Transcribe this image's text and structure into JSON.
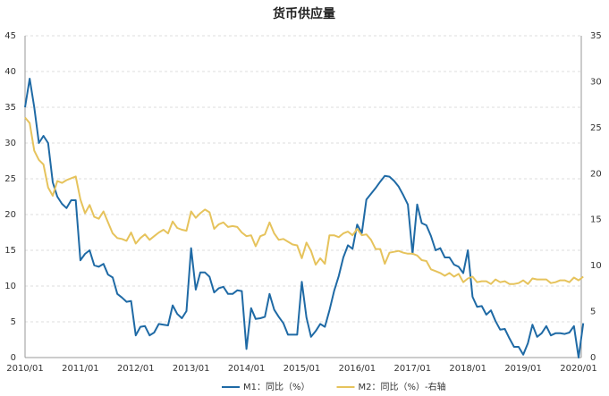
{
  "chart_data": {
    "type": "line",
    "title": "货币供应量",
    "categories": [
      "2010/01",
      null,
      null,
      null,
      null,
      null,
      null,
      null,
      null,
      null,
      null,
      null,
      "2011/01",
      null,
      null,
      null,
      null,
      null,
      null,
      null,
      null,
      null,
      null,
      null,
      "2012/01",
      null,
      null,
      null,
      null,
      null,
      null,
      null,
      null,
      null,
      null,
      null,
      "2013/01",
      null,
      null,
      null,
      null,
      null,
      null,
      null,
      null,
      null,
      null,
      null,
      "2014/01",
      null,
      null,
      null,
      null,
      null,
      null,
      null,
      null,
      null,
      null,
      null,
      "2015/01",
      null,
      null,
      null,
      null,
      null,
      null,
      null,
      null,
      null,
      null,
      null,
      "2016/01",
      null,
      null,
      null,
      null,
      null,
      null,
      null,
      null,
      null,
      null,
      null,
      "2017/01",
      null,
      null,
      null,
      null,
      null,
      null,
      null,
      null,
      null,
      null,
      null,
      "2018/01",
      null,
      null,
      null,
      null,
      null,
      null,
      null,
      null,
      null,
      null,
      null,
      "2019/01",
      null,
      null,
      null,
      null,
      null,
      null,
      null,
      null,
      null,
      null,
      null,
      "2020/01",
      null
    ],
    "series": [
      {
        "name": "M1：同比（%）",
        "color": "#1f6aa5",
        "axis": "y",
        "values": [
          35,
          39,
          35,
          30,
          31,
          30,
          24.5,
          22.5,
          21.5,
          20.9,
          22,
          22,
          13.6,
          14.5,
          15.0,
          12.9,
          12.7,
          13.1,
          11.6,
          11.2,
          8.9,
          8.4,
          7.8,
          7.9,
          3.1,
          4.3,
          4.4,
          3.1,
          3.5,
          4.7,
          4.6,
          4.5,
          7.3,
          6.1,
          5.5,
          6.5,
          15.3,
          9.5,
          11.9,
          11.9,
          11.3,
          9.1,
          9.7,
          9.9,
          8.9,
          8.9,
          9.4,
          9.3,
          1.2,
          6.9,
          5.4,
          5.5,
          5.7,
          8.9,
          6.7,
          5.7,
          4.8,
          3.2,
          3.2,
          3.2,
          10.6,
          5.6,
          2.9,
          3.7,
          4.7,
          4.3,
          6.6,
          9.3,
          11.4,
          14.0,
          15.7,
          15.2,
          18.6,
          17.4,
          22.1,
          22.9,
          23.7,
          24.6,
          25.4,
          25.3,
          24.7,
          23.9,
          22.7,
          21.4,
          14.5,
          21.4,
          18.8,
          18.5,
          17.0,
          15.0,
          15.3,
          14.0,
          14.0,
          13.0,
          12.7,
          11.8,
          15.0,
          8.5,
          7.1,
          7.2,
          6.0,
          6.6,
          5.1,
          3.9,
          4.0,
          2.7,
          1.5,
          1.5,
          0.4,
          2.0,
          4.6,
          2.9,
          3.4,
          4.4,
          3.1,
          3.4,
          3.4,
          3.3,
          3.5,
          4.4,
          0.0,
          4.8
        ]
      },
      {
        "name": "M2：同比（%）-右轴",
        "color": "#e6c35c",
        "axis": "y2",
        "values": [
          26.1,
          25.5,
          22.5,
          21.5,
          21.0,
          18.5,
          17.6,
          19.2,
          19.0,
          19.3,
          19.5,
          19.7,
          17.2,
          15.7,
          16.6,
          15.3,
          15.1,
          15.9,
          14.7,
          13.5,
          13.0,
          12.9,
          12.7,
          13.6,
          12.4,
          13.0,
          13.4,
          12.8,
          13.2,
          13.6,
          13.9,
          13.5,
          14.8,
          14.1,
          13.9,
          13.8,
          15.9,
          15.2,
          15.7,
          16.1,
          15.8,
          14.0,
          14.5,
          14.7,
          14.2,
          14.3,
          14.2,
          13.6,
          13.2,
          13.3,
          12.1,
          13.2,
          13.4,
          14.7,
          13.5,
          12.8,
          12.9,
          12.6,
          12.3,
          12.2,
          10.8,
          12.5,
          11.6,
          10.1,
          10.8,
          10.2,
          13.3,
          13.3,
          13.1,
          13.5,
          13.7,
          13.3,
          14.0,
          13.3,
          13.4,
          12.8,
          11.8,
          11.8,
          10.2,
          11.4,
          11.5,
          11.6,
          11.4,
          11.3,
          11.3,
          11.1,
          10.6,
          10.5,
          9.6,
          9.4,
          9.2,
          8.9,
          9.2,
          8.8,
          9.1,
          8.2,
          8.6,
          8.8,
          8.2,
          8.3,
          8.3,
          8.0,
          8.5,
          8.2,
          8.3,
          8.0,
          8.0,
          8.1,
          8.4,
          8.0,
          8.6,
          8.5,
          8.5,
          8.5,
          8.1,
          8.2,
          8.4,
          8.4,
          8.2,
          8.7,
          8.4,
          8.8
        ]
      }
    ],
    "ylim": [
      0,
      45
    ],
    "yticks": [
      0,
      5,
      10,
      15,
      20,
      25,
      30,
      35,
      40,
      45
    ],
    "y2lim": [
      0,
      35
    ],
    "y2ticks": [
      0,
      5,
      10,
      15,
      20,
      25,
      30,
      35
    ],
    "grid": true,
    "legend": "bottom"
  }
}
